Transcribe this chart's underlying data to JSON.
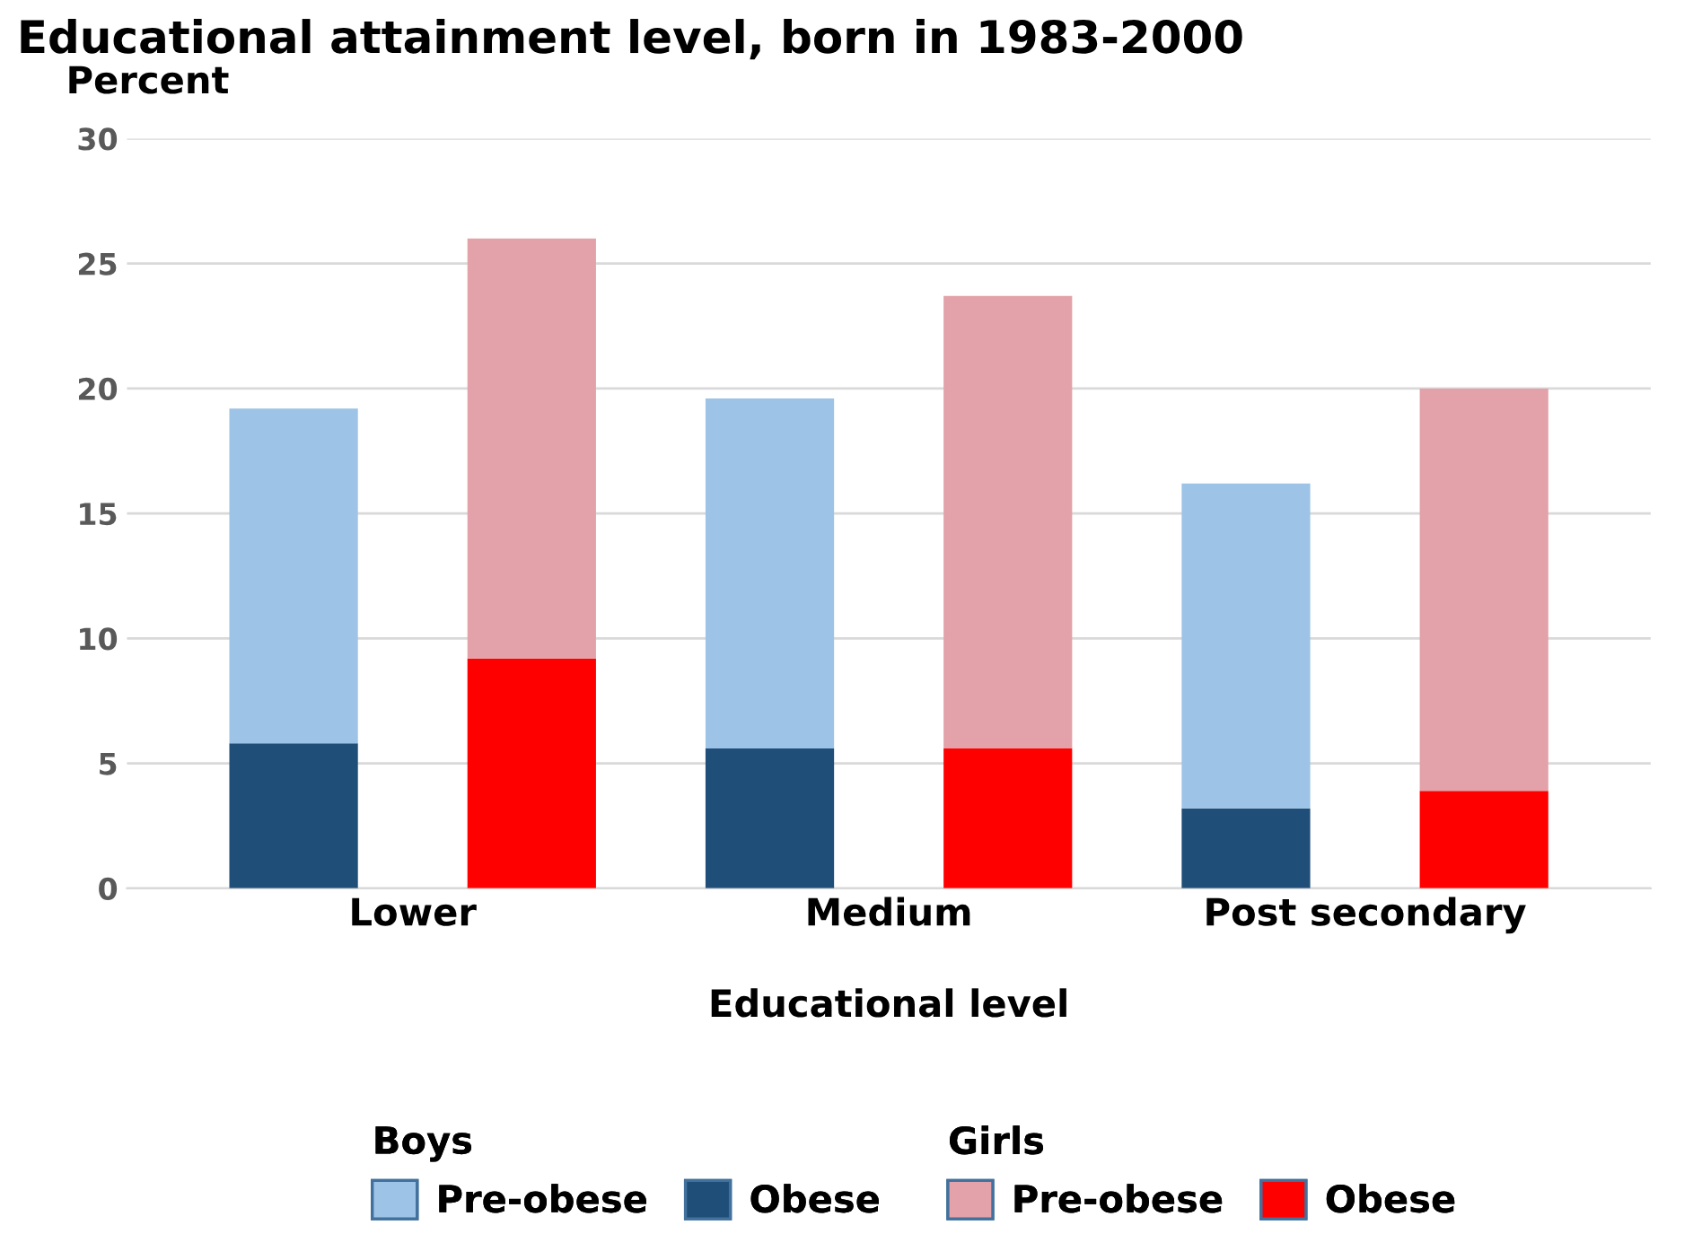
{
  "chart_data": {
    "type": "bar",
    "title": "Educational attainment level, born in 1983-2000",
    "ylabel": "Percent",
    "xlabel": "Educational level",
    "categories": [
      "Lower",
      null,
      "Medium",
      null,
      "Post secondary",
      null
    ],
    "stacked": true,
    "series": [
      {
        "name": "Obese",
        "color": "#1f4e79",
        "values": [
          5.8,
          null,
          5.6,
          null,
          3.2,
          null
        ]
      },
      {
        "name": "Pre-obese",
        "color": "#9dc3e6",
        "values": [
          13.4,
          null,
          14.0,
          null,
          13.0,
          null
        ]
      },
      {
        "name": "Obese",
        "color": "#ff0000",
        "values": [
          null,
          9.2,
          null,
          5.6,
          null,
          3.9
        ]
      },
      {
        "name": "Pre-obese",
        "color": "#e3a2a9",
        "values": [
          null,
          16.8,
          null,
          18.1,
          null,
          16.1
        ]
      }
    ],
    "annotations": [
      "Boys",
      "Girls"
    ],
    "ylim": [
      0,
      30
    ],
    "yticks": [
      0,
      5,
      10,
      15,
      20,
      25,
      30
    ],
    "grid": "y",
    "legend": "bottom"
  }
}
